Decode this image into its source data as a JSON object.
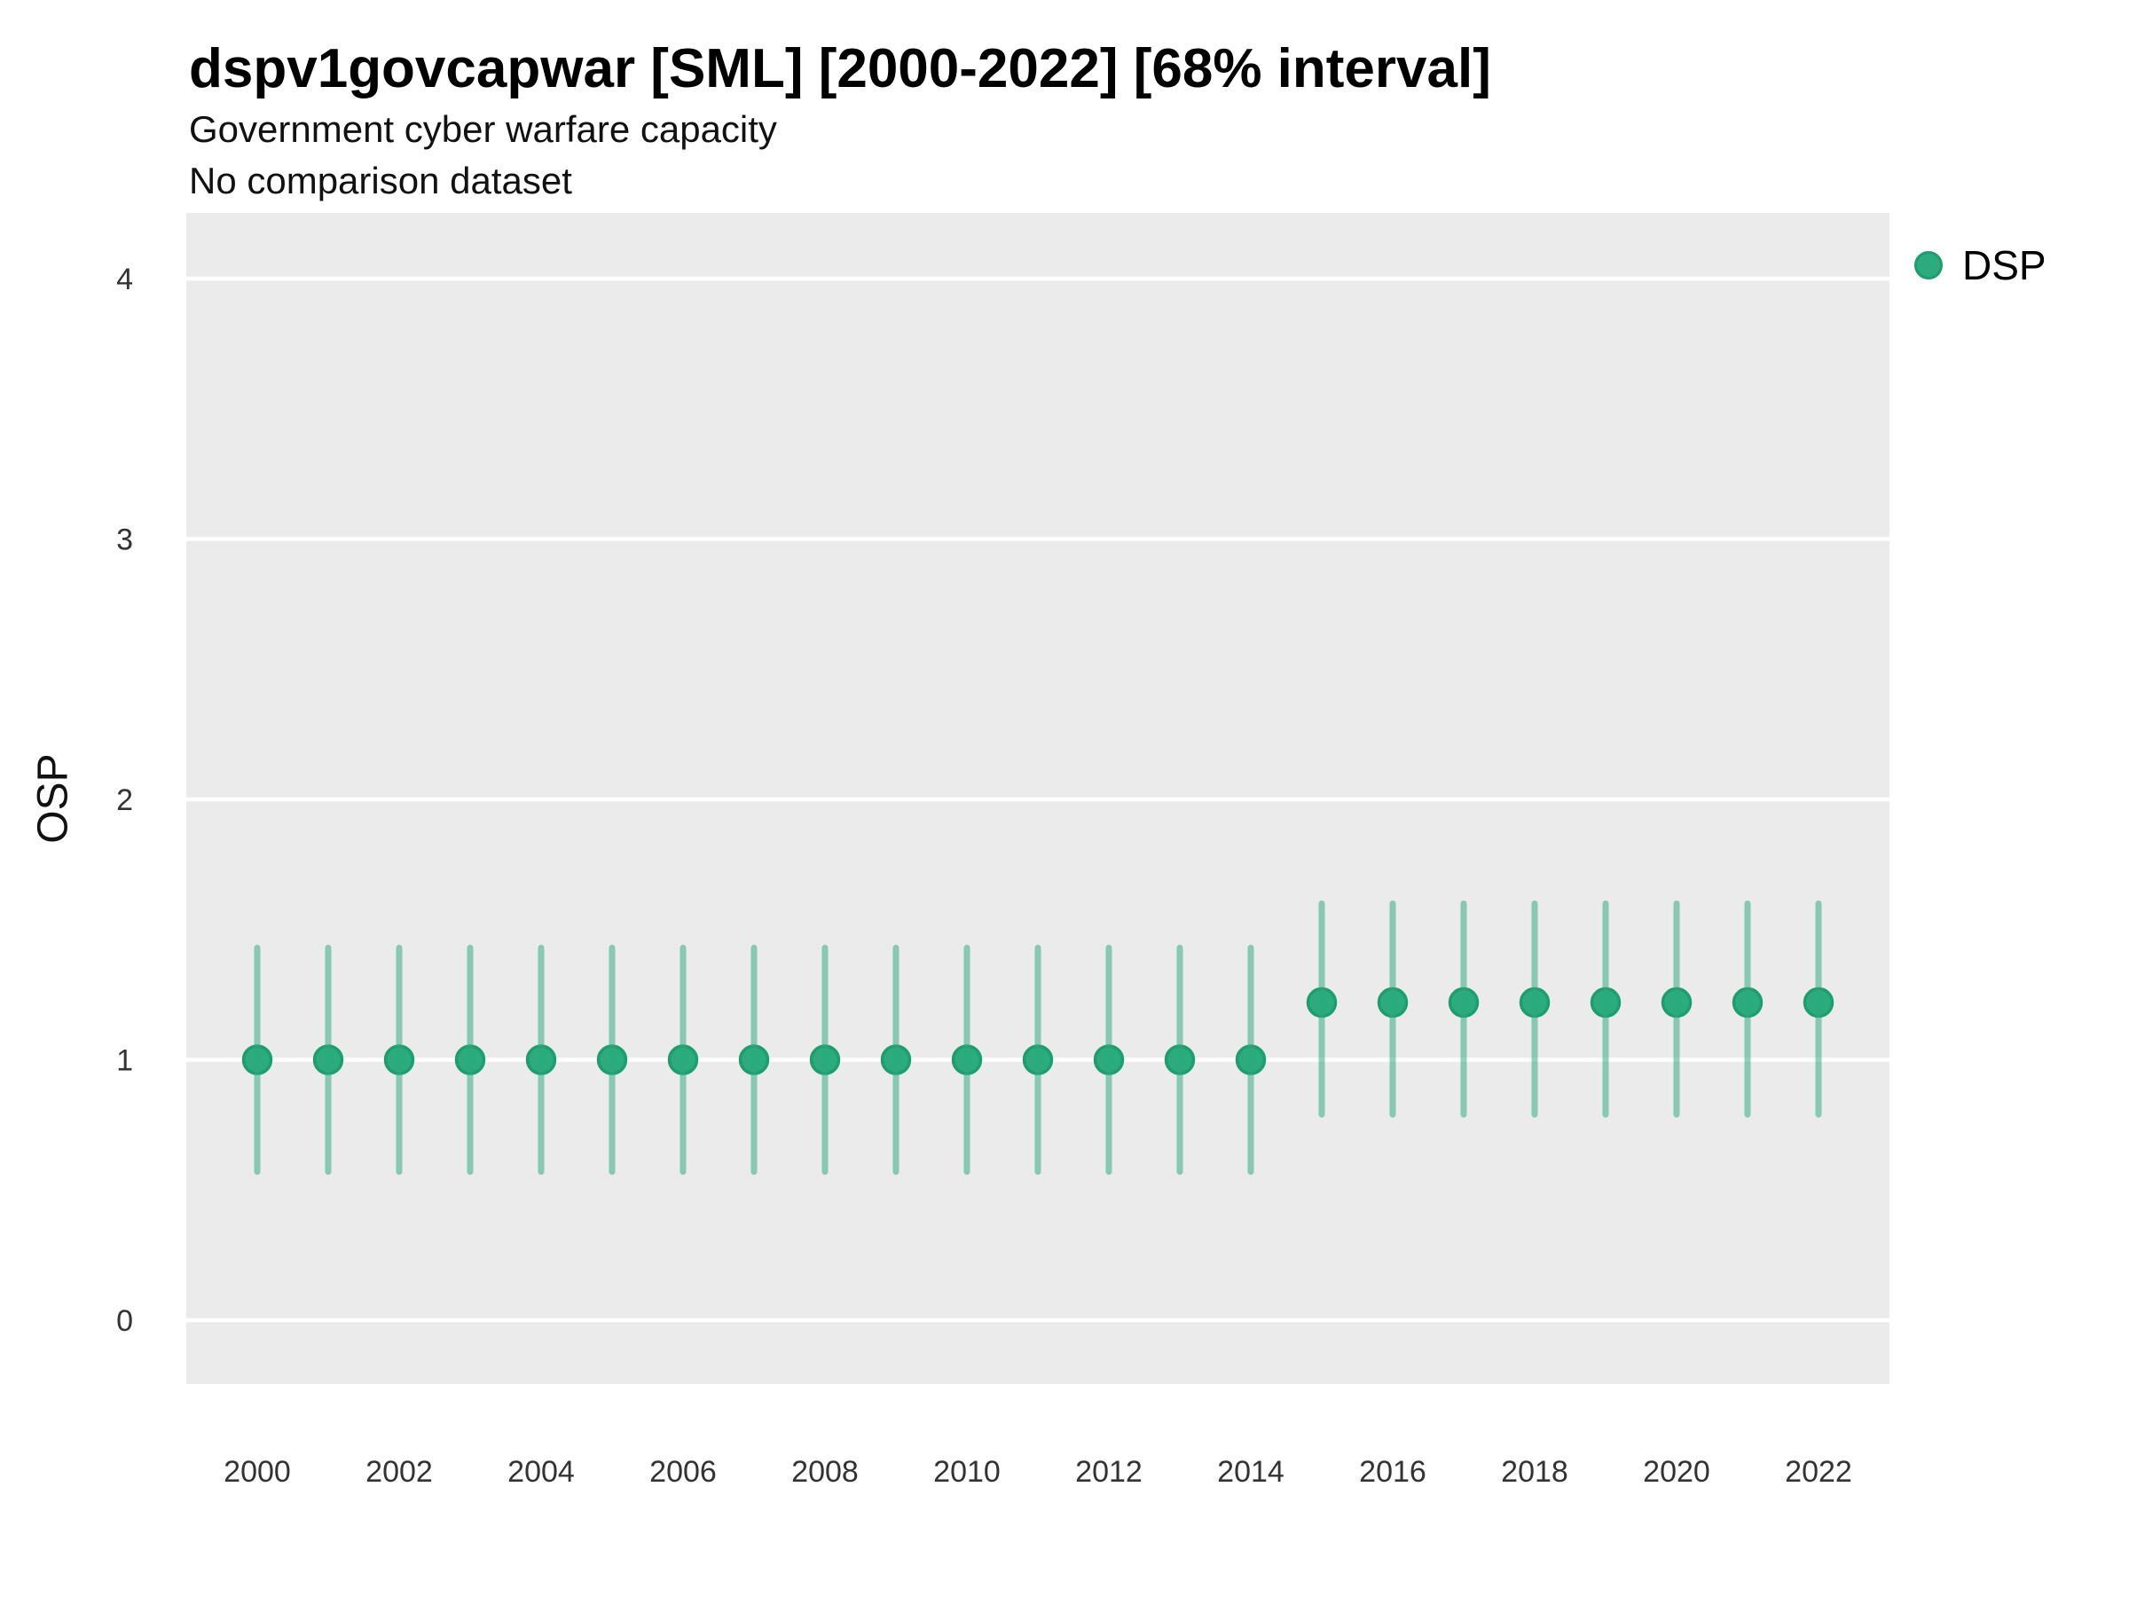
{
  "chart_data": {
    "type": "scatter",
    "title": "dspv1govcapwar [SML] [2000-2022] [68% interval]",
    "subtitle": "Government cyber warfare capacity",
    "subtitle2": "No comparison dataset",
    "ylabel": "OSP",
    "xlabel": "",
    "interval": "68%",
    "x": [
      2000,
      2001,
      2002,
      2003,
      2004,
      2005,
      2006,
      2007,
      2008,
      2009,
      2010,
      2011,
      2012,
      2013,
      2014,
      2015,
      2016,
      2017,
      2018,
      2019,
      2020,
      2021,
      2022
    ],
    "series": [
      {
        "name": "DSP",
        "values": [
          1.0,
          1.0,
          1.0,
          1.0,
          1.0,
          1.0,
          1.0,
          1.0,
          1.0,
          1.0,
          1.0,
          1.0,
          1.0,
          1.0,
          1.0,
          1.22,
          1.22,
          1.22,
          1.22,
          1.22,
          1.22,
          1.22,
          1.22
        ],
        "lower": [
          0.57,
          0.57,
          0.57,
          0.57,
          0.57,
          0.57,
          0.57,
          0.57,
          0.57,
          0.57,
          0.57,
          0.57,
          0.57,
          0.57,
          0.57,
          0.79,
          0.79,
          0.79,
          0.79,
          0.79,
          0.79,
          0.79,
          0.79
        ],
        "upper": [
          1.43,
          1.43,
          1.43,
          1.43,
          1.43,
          1.43,
          1.43,
          1.43,
          1.43,
          1.43,
          1.43,
          1.43,
          1.43,
          1.43,
          1.43,
          1.6,
          1.6,
          1.6,
          1.6,
          1.6,
          1.6,
          1.6,
          1.6
        ]
      }
    ],
    "xticks": [
      2000,
      2002,
      2004,
      2006,
      2008,
      2010,
      2012,
      2014,
      2016,
      2018,
      2020,
      2022
    ],
    "yticks": [
      0,
      1,
      2,
      3,
      4
    ],
    "ylim": [
      -0.25,
      4.25
    ],
    "grid": "horizontal-major-only",
    "legend_position": "right-top",
    "legend": [
      {
        "name": "DSP",
        "color": "#2BAB7E"
      }
    ],
    "colors": {
      "point_fill": "#2BAB7E",
      "point_stroke": "#1E9D6F",
      "interval_line": "rgba(43,171,126,0.52)",
      "panel_background": "#EBEBEB",
      "gridline": "#FFFFFF",
      "axis_text": "#333333"
    }
  }
}
